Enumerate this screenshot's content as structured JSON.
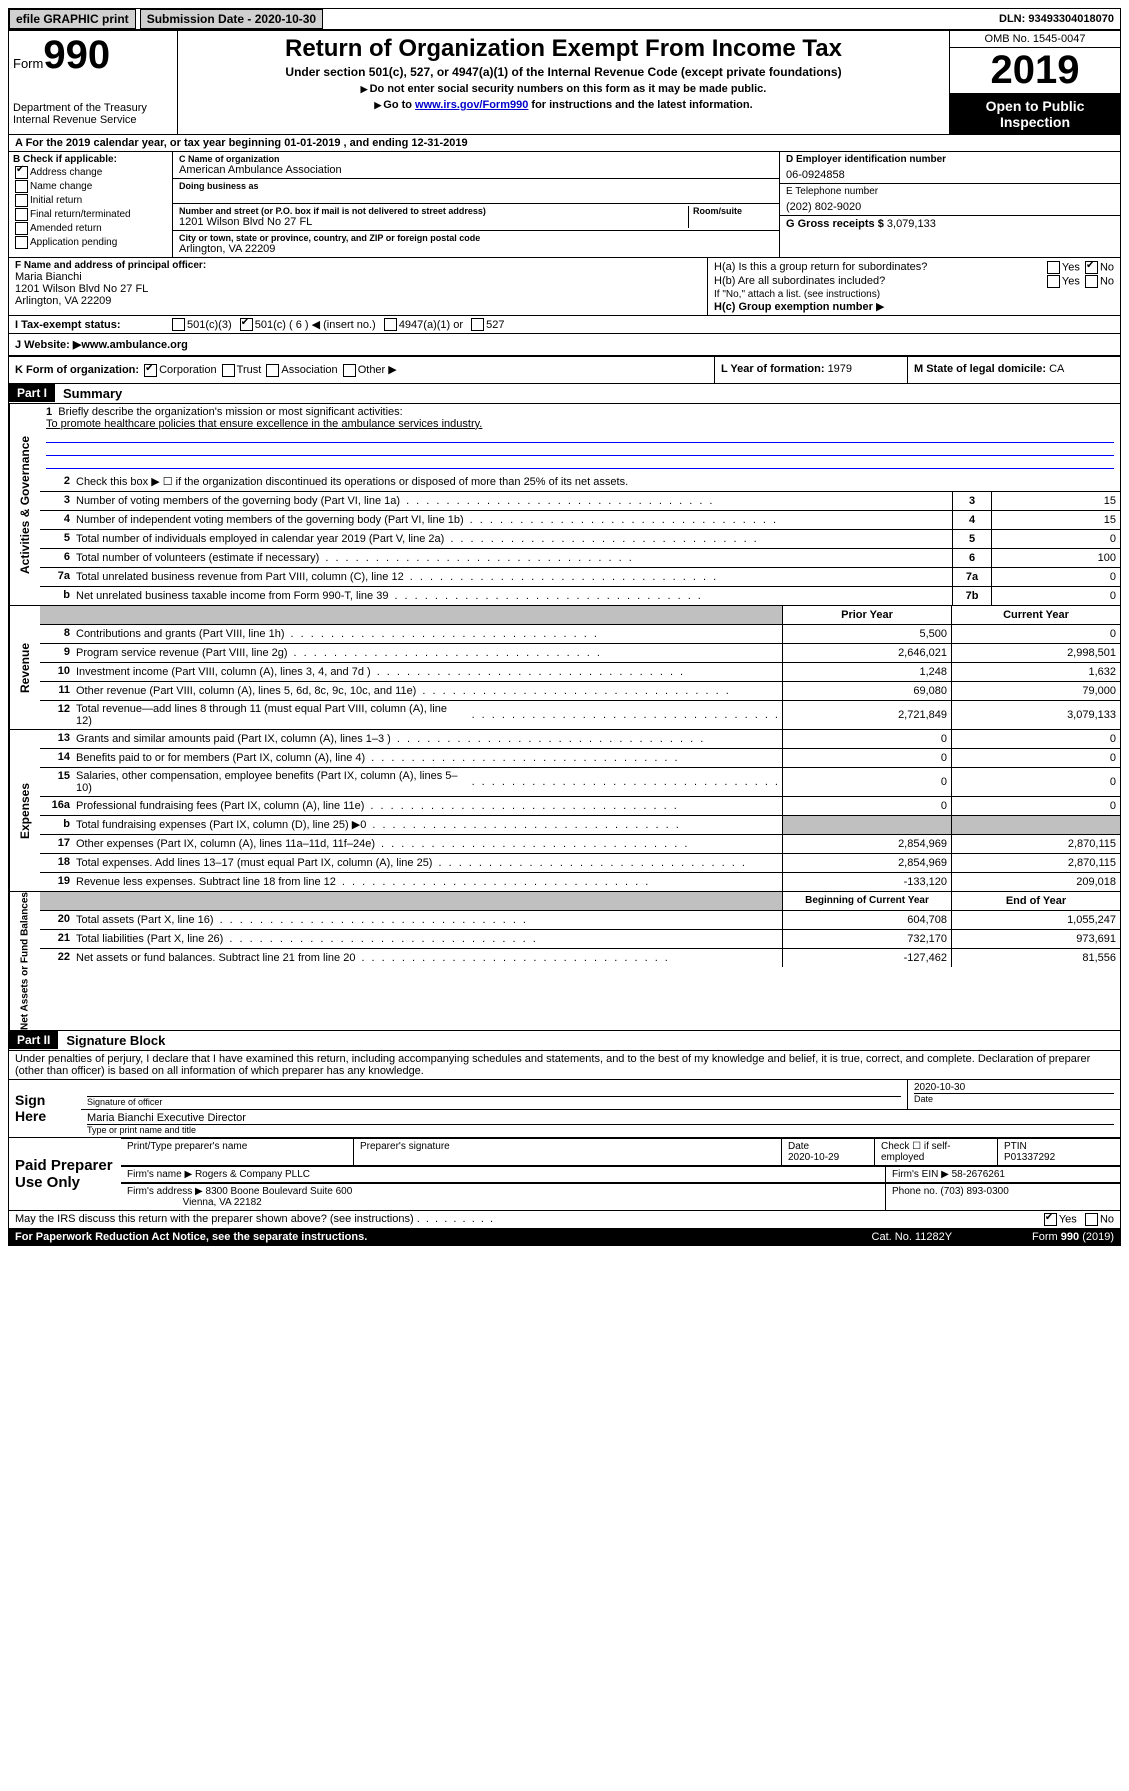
{
  "topbar": {
    "efile": "efile GRAPHIC print",
    "submission_label": "Submission Date - ",
    "submission_date": "2020-10-30",
    "dln_label": "DLN: ",
    "dln": "93493304018070"
  },
  "header": {
    "form_label": "Form",
    "form_num": "990",
    "dept": "Department of the Treasury\nInternal Revenue Service",
    "title": "Return of Organization Exempt From Income Tax",
    "sub1": "Under section 501(c), 527, or 4947(a)(1) of the Internal Revenue Code (except private foundations)",
    "sub2a": "Do not enter social security numbers on this form as it may be made public.",
    "sub2b_prefix": "Go to ",
    "sub2b_link": "www.irs.gov/Form990",
    "sub2b_suffix": " for instructions and the latest information.",
    "omb": "OMB No. 1545-0047",
    "year": "2019",
    "inspect": "Open to Public Inspection"
  },
  "rowA": "A For the 2019 calendar year, or tax year beginning 01-01-2019   , and ending 12-31-2019",
  "B": {
    "label": "B Check if applicable:",
    "addr_change": "Address change",
    "name_change": "Name change",
    "initial": "Initial return",
    "final": "Final return/terminated",
    "amended": "Amended return",
    "app_pending": "Application pending"
  },
  "C": {
    "name_lbl": "C Name of organization",
    "name": "American Ambulance Association",
    "dba_lbl": "Doing business as",
    "addr_lbl": "Number and street (or P.O. box if mail is not delivered to street address)",
    "room_lbl": "Room/suite",
    "addr": "1201 Wilson Blvd No 27 FL",
    "city_lbl": "City or town, state or province, country, and ZIP or foreign postal code",
    "city": "Arlington, VA  22209"
  },
  "D": {
    "lbl": "D Employer identification number",
    "val": "06-0924858"
  },
  "E": {
    "lbl": "E Telephone number",
    "val": "(202) 802-9020"
  },
  "G": {
    "lbl": "G Gross receipts $ ",
    "val": "3,079,133"
  },
  "F": {
    "lbl": "F  Name and address of principal officer:",
    "name": "Maria Bianchi",
    "addr1": "1201 Wilson Blvd No 27 FL",
    "addr2": "Arlington, VA  22209"
  },
  "H": {
    "a": "H(a)  Is this a group return for subordinates?",
    "a_yes": "Yes",
    "a_no": "No",
    "b": "H(b)  Are all subordinates included?",
    "b_yes": "Yes",
    "b_no": "No",
    "b_note": "If \"No,\" attach a list. (see instructions)",
    "c": "H(c)  Group exemption number "
  },
  "I": {
    "lbl": "I  Tax-exempt status:",
    "o1": "501(c)(3)",
    "o2": "501(c) ( 6 ) ◀ (insert no.)",
    "o3": "4947(a)(1) or",
    "o4": "527"
  },
  "J": {
    "lbl": "J  Website: ▶",
    "val": " www.ambulance.org"
  },
  "K": {
    "lbl": "K Form of organization:",
    "corp": "Corporation",
    "trust": "Trust",
    "assoc": "Association",
    "other": "Other ▶",
    "L_lbl": "L Year of formation: ",
    "L_val": "1979",
    "M_lbl": "M State of legal domicile: ",
    "M_val": "CA"
  },
  "part1": {
    "hdr": "Part I",
    "title": "Summary"
  },
  "side": {
    "gov": "Activities & Governance",
    "rev": "Revenue",
    "exp": "Expenses",
    "net": "Net Assets or Fund Balances"
  },
  "l1": {
    "num": "1",
    "text": "Briefly describe the organization's mission or most significant activities:",
    "mission": "To promote healthcare policies that ensure excellence in the ambulance services industry."
  },
  "l2": {
    "num": "2",
    "text": "Check this box ▶ ☐ if the organization discontinued its operations or disposed of more than 25% of its net assets."
  },
  "rows_gov": [
    {
      "n": "3",
      "t": "Number of voting members of the governing body (Part VI, line 1a)",
      "c": "3",
      "v": "15"
    },
    {
      "n": "4",
      "t": "Number of independent voting members of the governing body (Part VI, line 1b)",
      "c": "4",
      "v": "15"
    },
    {
      "n": "5",
      "t": "Total number of individuals employed in calendar year 2019 (Part V, line 2a)",
      "c": "5",
      "v": "0"
    },
    {
      "n": "6",
      "t": "Total number of volunteers (estimate if necessary)",
      "c": "6",
      "v": "100"
    },
    {
      "n": "7a",
      "t": "Total unrelated business revenue from Part VIII, column (C), line 12",
      "c": "7a",
      "v": "0"
    },
    {
      "n": "b",
      "t": "Net unrelated business taxable income from Form 990-T, line 39",
      "c": "7b",
      "v": "0"
    }
  ],
  "pycy": {
    "py": "Prior Year",
    "cy": "Current Year"
  },
  "rows_rev": [
    {
      "n": "8",
      "t": "Contributions and grants (Part VIII, line 1h)",
      "py": "5,500",
      "cy": "0"
    },
    {
      "n": "9",
      "t": "Program service revenue (Part VIII, line 2g)",
      "py": "2,646,021",
      "cy": "2,998,501"
    },
    {
      "n": "10",
      "t": "Investment income (Part VIII, column (A), lines 3, 4, and 7d )",
      "py": "1,248",
      "cy": "1,632"
    },
    {
      "n": "11",
      "t": "Other revenue (Part VIII, column (A), lines 5, 6d, 8c, 9c, 10c, and 11e)",
      "py": "69,080",
      "cy": "79,000"
    },
    {
      "n": "12",
      "t": "Total revenue—add lines 8 through 11 (must equal Part VIII, column (A), line 12)",
      "py": "2,721,849",
      "cy": "3,079,133"
    }
  ],
  "rows_exp": [
    {
      "n": "13",
      "t": "Grants and similar amounts paid (Part IX, column (A), lines 1–3 )",
      "py": "0",
      "cy": "0"
    },
    {
      "n": "14",
      "t": "Benefits paid to or for members (Part IX, column (A), line 4)",
      "py": "0",
      "cy": "0"
    },
    {
      "n": "15",
      "t": "Salaries, other compensation, employee benefits (Part IX, column (A), lines 5–10)",
      "py": "0",
      "cy": "0"
    },
    {
      "n": "16a",
      "t": "Professional fundraising fees (Part IX, column (A), line 11e)",
      "py": "0",
      "cy": "0"
    },
    {
      "n": "b",
      "t": "Total fundraising expenses (Part IX, column (D), line 25) ▶0",
      "py": "",
      "cy": "",
      "shade": true
    },
    {
      "n": "17",
      "t": "Other expenses (Part IX, column (A), lines 11a–11d, 11f–24e)",
      "py": "2,854,969",
      "cy": "2,870,115"
    },
    {
      "n": "18",
      "t": "Total expenses. Add lines 13–17 (must equal Part IX, column (A), line 25)",
      "py": "2,854,969",
      "cy": "2,870,115"
    },
    {
      "n": "19",
      "t": "Revenue less expenses. Subtract line 18 from line 12",
      "py": "-133,120",
      "cy": "209,018"
    }
  ],
  "bceoy": {
    "b": "Beginning of Current Year",
    "e": "End of Year"
  },
  "rows_net": [
    {
      "n": "20",
      "t": "Total assets (Part X, line 16)",
      "py": "604,708",
      "cy": "1,055,247"
    },
    {
      "n": "21",
      "t": "Total liabilities (Part X, line 26)",
      "py": "732,170",
      "cy": "973,691"
    },
    {
      "n": "22",
      "t": "Net assets or fund balances. Subtract line 21 from line 20",
      "py": "-127,462",
      "cy": "81,556"
    }
  ],
  "part2": {
    "hdr": "Part II",
    "title": "Signature Block"
  },
  "perjury": "Under penalties of perjury, I declare that I have examined this return, including accompanying schedules and statements, and to the best of my knowledge and belief, it is true, correct, and complete. Declaration of preparer (other than officer) is based on all information of which preparer has any knowledge.",
  "sign": {
    "here": "Sign Here",
    "sig_lbl": "Signature of officer",
    "date_lbl": "Date",
    "date": "2020-10-30",
    "name": "Maria Bianchi  Executive Director",
    "name_lbl": "Type or print name and title"
  },
  "paid": {
    "lbl": "Paid Preparer Use Only",
    "h_name": "Print/Type preparer's name",
    "h_sig": "Preparer's signature",
    "h_date": "Date",
    "date": "2020-10-29",
    "h_check": "Check ☐ if self-employed",
    "h_ptin": "PTIN",
    "ptin": "P01337292",
    "firm_lbl": "Firm's name   ▶ ",
    "firm": "Rogers & Company PLLC",
    "ein_lbl": "Firm's EIN ▶ ",
    "ein": "58-2676261",
    "addr_lbl": "Firm's address ▶ ",
    "addr1": "8300 Boone Boulevard Suite 600",
    "addr2": "Vienna, VA  22182",
    "phone_lbl": "Phone no. ",
    "phone": "(703) 893-0300"
  },
  "discuss": {
    "text": "May the IRS discuss this return with the preparer shown above? (see instructions)",
    "yes": "Yes",
    "no": "No"
  },
  "footer": {
    "left": "For Paperwork Reduction Act Notice, see the separate instructions.",
    "mid": "Cat. No. 11282Y",
    "right": "Form 990 (2019)"
  }
}
